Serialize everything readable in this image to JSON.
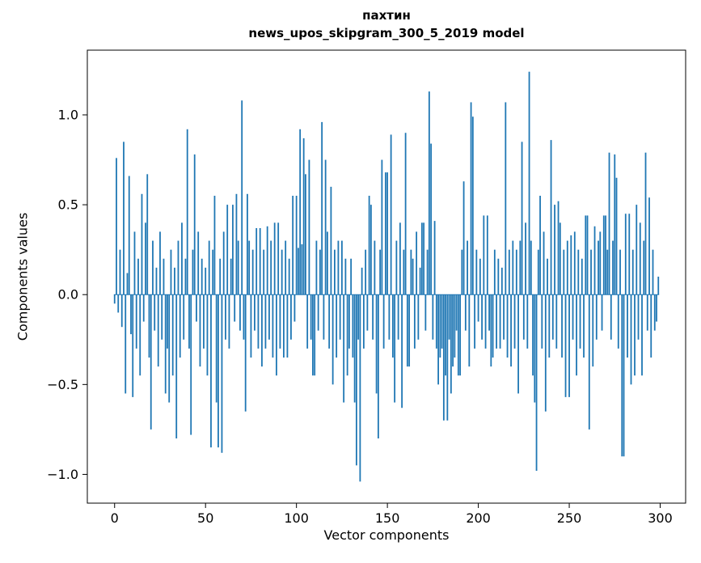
{
  "chart_data": {
    "type": "bar",
    "title": "пахтин",
    "subtitle": "news_upos_skipgram_300_5_2019 model",
    "xlabel": "Vector components",
    "ylabel": "Components values",
    "bar_color": "#1f77b4",
    "xlim": [
      -15,
      314
    ],
    "ylim": [
      -1.16,
      1.36
    ],
    "xticks": [
      0,
      50,
      100,
      150,
      200,
      250,
      300
    ],
    "yticks": [
      -1.0,
      -0.5,
      0.0,
      0.5,
      1.0
    ],
    "grid": false,
    "legend": "none",
    "n_components": 300,
    "values": [
      -0.05,
      0.76,
      -0.1,
      0.25,
      -0.18,
      0.85,
      -0.55,
      0.12,
      0.66,
      -0.22,
      -0.57,
      0.35,
      -0.3,
      0.2,
      -0.45,
      0.56,
      -0.15,
      0.4,
      0.67,
      -0.35,
      -0.75,
      0.3,
      -0.2,
      0.15,
      -0.4,
      0.35,
      -0.25,
      0.2,
      -0.55,
      -0.3,
      -0.6,
      0.25,
      -0.45,
      0.15,
      -0.8,
      0.3,
      -0.35,
      0.4,
      -0.25,
      0.2,
      0.92,
      -0.3,
      -0.78,
      0.25,
      0.78,
      -0.15,
      0.35,
      -0.4,
      0.2,
      -0.3,
      0.15,
      -0.45,
      0.3,
      -0.85,
      0.25,
      0.55,
      -0.6,
      -0.85,
      0.2,
      -0.88,
      0.35,
      -0.25,
      0.5,
      -0.3,
      0.2,
      0.5,
      -0.15,
      0.56,
      0.3,
      -0.2,
      1.08,
      -0.25,
      -0.65,
      0.56,
      0.3,
      -0.35,
      0.25,
      -0.2,
      0.37,
      -0.3,
      0.37,
      -0.4,
      0.25,
      -0.3,
      0.38,
      -0.25,
      0.3,
      -0.35,
      0.4,
      -0.45,
      0.4,
      -0.3,
      0.25,
      -0.35,
      0.3,
      -0.35,
      0.2,
      -0.25,
      0.55,
      -0.15,
      0.55,
      0.26,
      0.92,
      0.28,
      0.87,
      0.67,
      -0.3,
      0.75,
      -0.25,
      -0.45,
      -0.45,
      0.3,
      -0.2,
      0.25,
      0.96,
      -0.25,
      0.75,
      0.35,
      -0.3,
      0.6,
      -0.5,
      0.25,
      -0.35,
      0.3,
      -0.25,
      0.3,
      -0.6,
      0.2,
      -0.45,
      -0.3,
      0.2,
      -0.35,
      -0.6,
      -0.95,
      -0.25,
      -1.04,
      0.15,
      -0.3,
      0.25,
      -0.2,
      0.55,
      0.5,
      -0.25,
      0.3,
      -0.55,
      -0.8,
      0.25,
      0.75,
      -0.3,
      0.68,
      0.68,
      -0.25,
      0.89,
      -0.35,
      -0.6,
      0.3,
      -0.25,
      0.4,
      -0.63,
      0.25,
      0.9,
      -0.4,
      -0.4,
      0.25,
      0.2,
      -0.3,
      0.35,
      -0.25,
      0.15,
      0.4,
      0.4,
      -0.2,
      0.25,
      1.13,
      0.84,
      -0.25,
      0.41,
      -0.3,
      -0.5,
      -0.35,
      -0.3,
      -0.7,
      -0.45,
      -0.7,
      -0.25,
      -0.55,
      -0.4,
      -0.35,
      -0.2,
      -0.45,
      -0.45,
      0.25,
      0.63,
      -0.2,
      0.3,
      -0.4,
      1.07,
      0.99,
      -0.3,
      0.25,
      -0.15,
      0.2,
      -0.25,
      0.44,
      -0.3,
      0.44,
      -0.2,
      -0.4,
      -0.35,
      0.25,
      -0.3,
      0.2,
      -0.3,
      0.15,
      -0.25,
      1.07,
      -0.35,
      0.25,
      -0.4,
      0.3,
      -0.3,
      0.25,
      -0.55,
      0.3,
      0.85,
      -0.25,
      0.4,
      -0.3,
      1.24,
      0.3,
      -0.45,
      -0.6,
      -0.98,
      0.25,
      0.55,
      -0.3,
      0.35,
      -0.65,
      0.2,
      -0.35,
      0.86,
      -0.25,
      0.5,
      -0.3,
      0.52,
      0.4,
      -0.35,
      0.25,
      -0.57,
      0.3,
      -0.57,
      0.33,
      -0.25,
      0.35,
      -0.45,
      0.25,
      -0.3,
      0.2,
      -0.35,
      0.44,
      0.44,
      -0.75,
      0.25,
      -0.4,
      0.38,
      -0.25,
      0.3,
      0.35,
      -0.2,
      0.44,
      0.44,
      0.25,
      0.79,
      -0.25,
      0.3,
      0.78,
      0.65,
      -0.3,
      0.25,
      -0.9,
      -0.9,
      0.45,
      -0.35,
      0.45,
      -0.5,
      0.25,
      -0.45,
      0.5,
      -0.25,
      0.4,
      -0.45,
      0.3,
      0.79,
      -0.2,
      0.54,
      -0.35,
      0.25,
      -0.2,
      -0.15,
      0.1
    ]
  }
}
